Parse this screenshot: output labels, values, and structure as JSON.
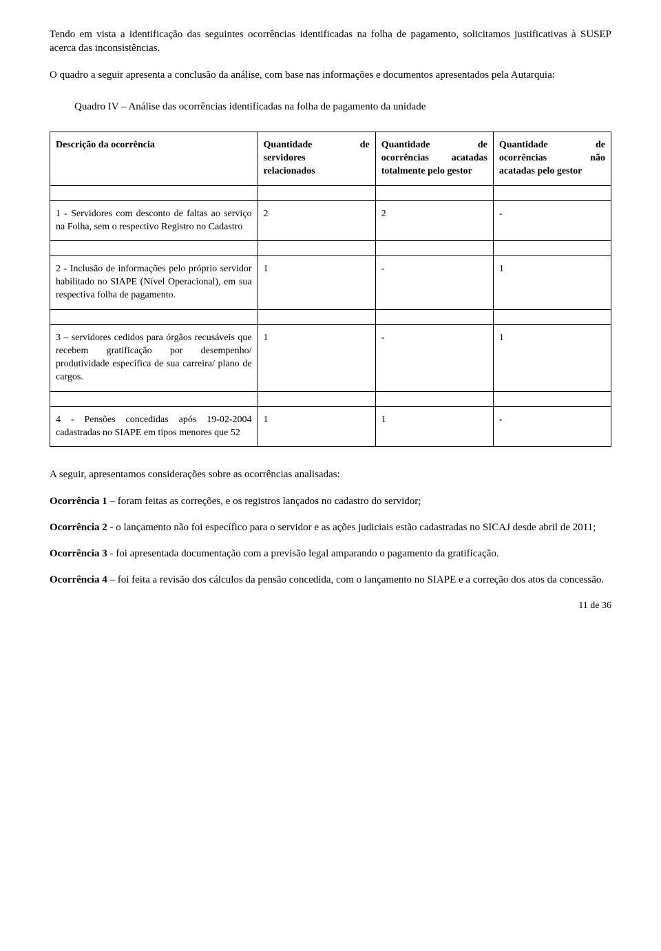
{
  "intro": {
    "p1": "Tendo em vista a identificação das seguintes ocorrências identificadas na folha de pagamento, solicitamos justificativas à SUSEP acerca das inconsistências.",
    "p2": "O quadro a seguir apresenta a conclusão da análise, com base nas informações e documentos apresentados pela Autarquia:"
  },
  "quadro_title": "Quadro IV – Análise das ocorrências identificadas na folha de pagamento da unidade",
  "table": {
    "headers": {
      "c1": "Descrição da ocorrência",
      "c2a": "Quantidade",
      "c2b": "de",
      "c2_l2": "servidores",
      "c2_l3": "relacionados",
      "c3a": "Quantidade",
      "c3b": "de",
      "c3_l2a": "ocorrências",
      "c3_l2b": "acatadas",
      "c3_l3": "totalmente pelo gestor",
      "c4a": "Quantidade",
      "c4b": "de",
      "c4_l2a": "ocorrências",
      "c4_l2b": "não",
      "c4_l3": "acatadas pelo gestor"
    },
    "rows": [
      {
        "desc": "1 - Servidores com desconto de faltas ao serviço na Folha, sem o respectivo Registro no Cadastro",
        "v1": "2",
        "v2": "2",
        "v3": "-"
      },
      {
        "desc": "2 - Inclusão de informações pelo próprio servidor habilitado no SIAPE (Nível Operacional), em sua respectiva folha de pagamento.",
        "v1": "1",
        "v2": "-",
        "v3": "1"
      },
      {
        "desc": "3 – servidores cedidos para órgãos recusáveis que recebem gratificação por desempenho/ produtividade específica de sua carreira/ plano de cargos.",
        "v1": "1",
        "v2": "-",
        "v3": "1"
      },
      {
        "desc": "4 - Pensões concedidas após 19-02-2004 cadastradas no SIAPE em tipos menores que 52",
        "v1": "1",
        "v2": "1",
        "v3": "-"
      }
    ]
  },
  "followup": "A seguir, apresentamos considerações sobre as ocorrências analisadas:",
  "oc1_b": "Ocorrência 1",
  "oc1_t": " – foram feitas as correções, e os registros lançados no cadastro do servidor;",
  "oc2_b": "Ocorrência 2",
  "oc2_t": " - o lançamento não foi específico para o servidor e as ações judiciais estão cadastradas no SICAJ desde abril de 2011;",
  "oc3_b": "Ocorrência 3",
  "oc3_t": " - foi apresentada documentação com a previsão legal amparando o pagamento da gratificação.",
  "oc4_b": "Ocorrência 4",
  "oc4_t": " – foi feita a revisão dos cálculos da pensão concedida, com o lançamento no SIAPE e a correção dos atos da concessão.",
  "page": "11 de 36"
}
